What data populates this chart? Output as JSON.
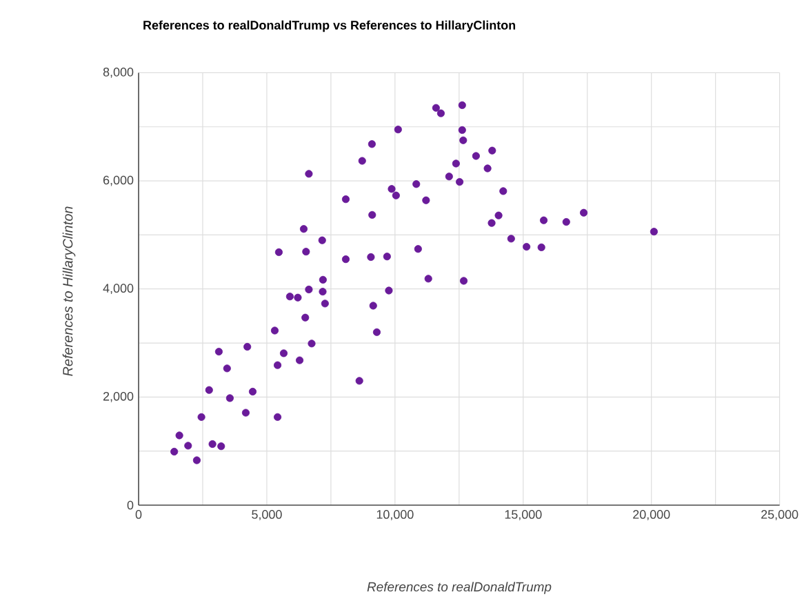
{
  "chart_data": {
    "type": "scatter",
    "title": "References to realDonaldTrump vs References to HillaryClinton",
    "xlabel": "References to realDonaldTrump",
    "ylabel": "References to HillaryClinton",
    "xlim": [
      0,
      25000
    ],
    "ylim": [
      0,
      8000
    ],
    "xticks": [
      0,
      {
        "value": 2500,
        "label": null
      },
      {
        "value": 5000,
        "label": "5,000"
      },
      {
        "value": 7500,
        "label": null
      },
      {
        "value": 10000,
        "label": "10,000"
      },
      {
        "value": 12500,
        "label": null
      },
      {
        "value": 15000,
        "label": "15,000"
      },
      {
        "value": 17500,
        "label": null
      },
      {
        "value": 20000,
        "label": "20,000"
      },
      {
        "value": 22500,
        "label": null
      },
      {
        "value": 25000,
        "label": "25,000"
      }
    ],
    "yticks": [
      0,
      {
        "value": 1000,
        "label": null
      },
      {
        "value": 2000,
        "label": "2,000"
      },
      {
        "value": 3000,
        "label": null
      },
      {
        "value": 4000,
        "label": "4,000"
      },
      {
        "value": 5000,
        "label": null
      },
      {
        "value": 6000,
        "label": "6,000"
      },
      {
        "value": 7000,
        "label": null
      },
      {
        "value": 8000,
        "label": "8,000"
      }
    ],
    "grid": true,
    "marker": "circle",
    "series": [
      {
        "color": "#6a1b9a",
        "x": [
          6640,
          8080,
          6440,
          7160,
          5470,
          6530,
          8080,
          7190,
          6640,
          7180,
          5900,
          6210,
          7270,
          6500,
          5310,
          3130,
          4240,
          5660,
          6750,
          3450,
          5420,
          6280,
          2750,
          4450,
          3560,
          2450,
          4180,
          5420,
          1590,
          1930,
          2880,
          3220,
          1390,
          2270,
          8610,
          11600,
          11790,
          12620,
          10120,
          12620,
          12660,
          9100,
          8720,
          13160,
          13790,
          12380,
          13610,
          12110,
          12520,
          10830,
          14220,
          9870,
          10040,
          11210,
          9110,
          14040,
          13770,
          15800,
          16680,
          9060,
          9690,
          10900,
          14530,
          15130,
          15710,
          11300,
          12680,
          9760,
          9150,
          9290,
          17360,
          20100
        ],
        "values": [
          6130,
          5660,
          5110,
          4900,
          4680,
          4690,
          4550,
          4170,
          3990,
          3950,
          3860,
          3840,
          3730,
          3470,
          3230,
          2840,
          2930,
          2810,
          2990,
          2530,
          2590,
          2680,
          2130,
          2100,
          1980,
          1630,
          1710,
          1630,
          1290,
          1100,
          1130,
          1090,
          990,
          830,
          2300,
          7350,
          7250,
          7400,
          6950,
          6940,
          6750,
          6680,
          6370,
          6460,
          6560,
          6320,
          6230,
          6080,
          5980,
          5940,
          5810,
          5850,
          5730,
          5640,
          5370,
          5360,
          5220,
          5270,
          5240,
          4590,
          4600,
          4740,
          4930,
          4780,
          4770,
          4190,
          4150,
          3970,
          3690,
          3200,
          5410,
          5060
        ]
      }
    ]
  }
}
